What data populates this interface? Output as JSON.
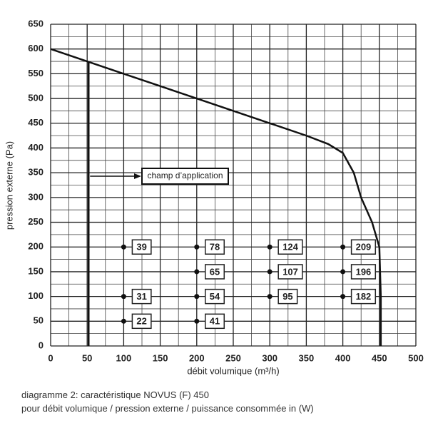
{
  "chart_data": {
    "type": "line",
    "xlabel": "débit volumique (m³/h)",
    "ylabel": "pression externe (Pa)",
    "x": [
      0,
      50,
      100,
      150,
      200,
      250,
      300,
      350,
      380,
      400,
      415,
      425,
      440,
      450,
      452,
      452
    ],
    "values": [
      600,
      575,
      550,
      525,
      500,
      475,
      450,
      425,
      408,
      390,
      350,
      300,
      250,
      200,
      100,
      0
    ],
    "color": "#111111",
    "xlim": [
      0,
      500
    ],
    "ylim": [
      0,
      650
    ],
    "xticks": [
      0,
      50,
      100,
      150,
      200,
      250,
      300,
      350,
      400,
      450,
      500
    ],
    "yticks": [
      0,
      50,
      100,
      150,
      200,
      250,
      300,
      350,
      400,
      450,
      500,
      550,
      600,
      650
    ],
    "grid": true,
    "boundary": {
      "label": "champ d’application",
      "x": [
        52,
        52
      ],
      "values": [
        575,
        0
      ]
    },
    "points": [
      {
        "x": 100,
        "y": 200,
        "label": 39
      },
      {
        "x": 100,
        "y": 100,
        "label": 31
      },
      {
        "x": 100,
        "y": 50,
        "label": 22
      },
      {
        "x": 200,
        "y": 200,
        "label": 78
      },
      {
        "x": 200,
        "y": 150,
        "label": 65
      },
      {
        "x": 200,
        "y": 100,
        "label": 54
      },
      {
        "x": 200,
        "y": 50,
        "label": 41
      },
      {
        "x": 300,
        "y": 200,
        "label": 124
      },
      {
        "x": 300,
        "y": 150,
        "label": 107
      },
      {
        "x": 300,
        "y": 100,
        "label": 95
      },
      {
        "x": 400,
        "y": 200,
        "label": 209
      },
      {
        "x": 400,
        "y": 150,
        "label": 196
      },
      {
        "x": 400,
        "y": 100,
        "label": 182
      }
    ],
    "caption": [
      "diagramme 2: caractéristique NOVUS (F) 450",
      "pour débit volumique / pression externe / puissance consommée in (W)"
    ]
  }
}
